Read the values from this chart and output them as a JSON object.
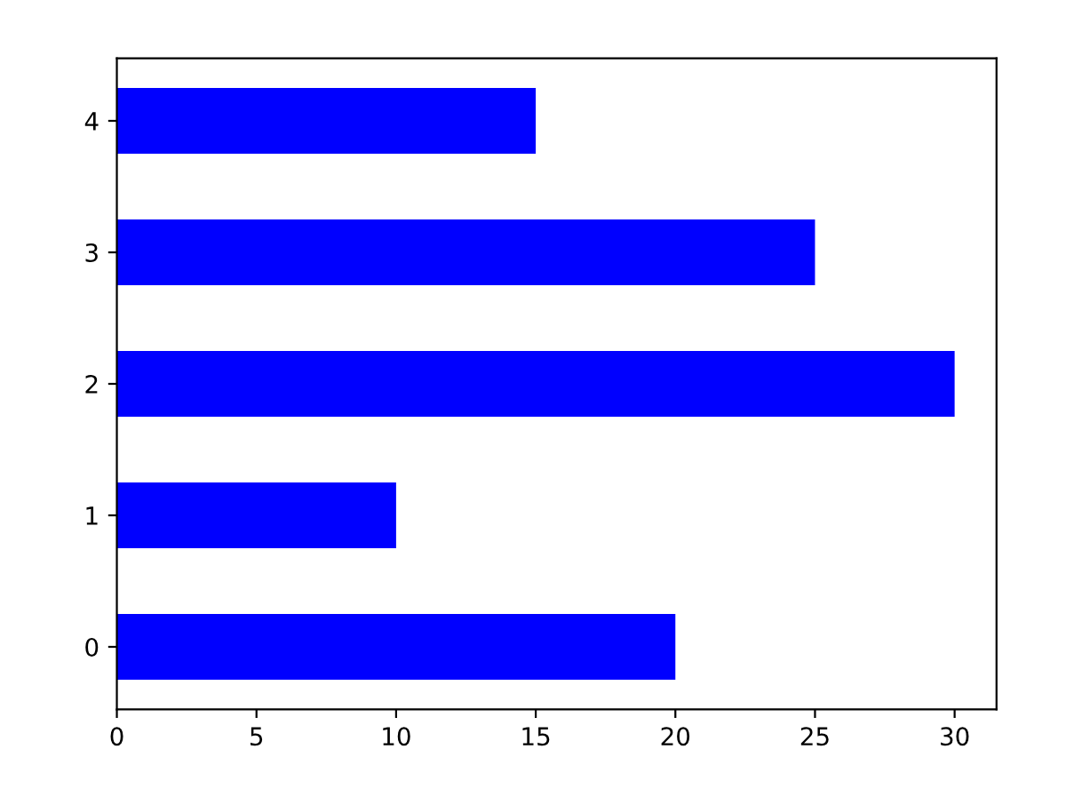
{
  "chart_data": {
    "type": "bar",
    "orientation": "horizontal",
    "categories": [
      "4",
      "3",
      "2",
      "1",
      "0"
    ],
    "values": [
      15,
      25,
      30,
      10,
      20
    ],
    "color": "#0000ff",
    "xlim": [
      0,
      31.5
    ],
    "xticks": [
      0,
      5,
      10,
      15,
      20,
      25,
      30
    ],
    "grid": false
  }
}
